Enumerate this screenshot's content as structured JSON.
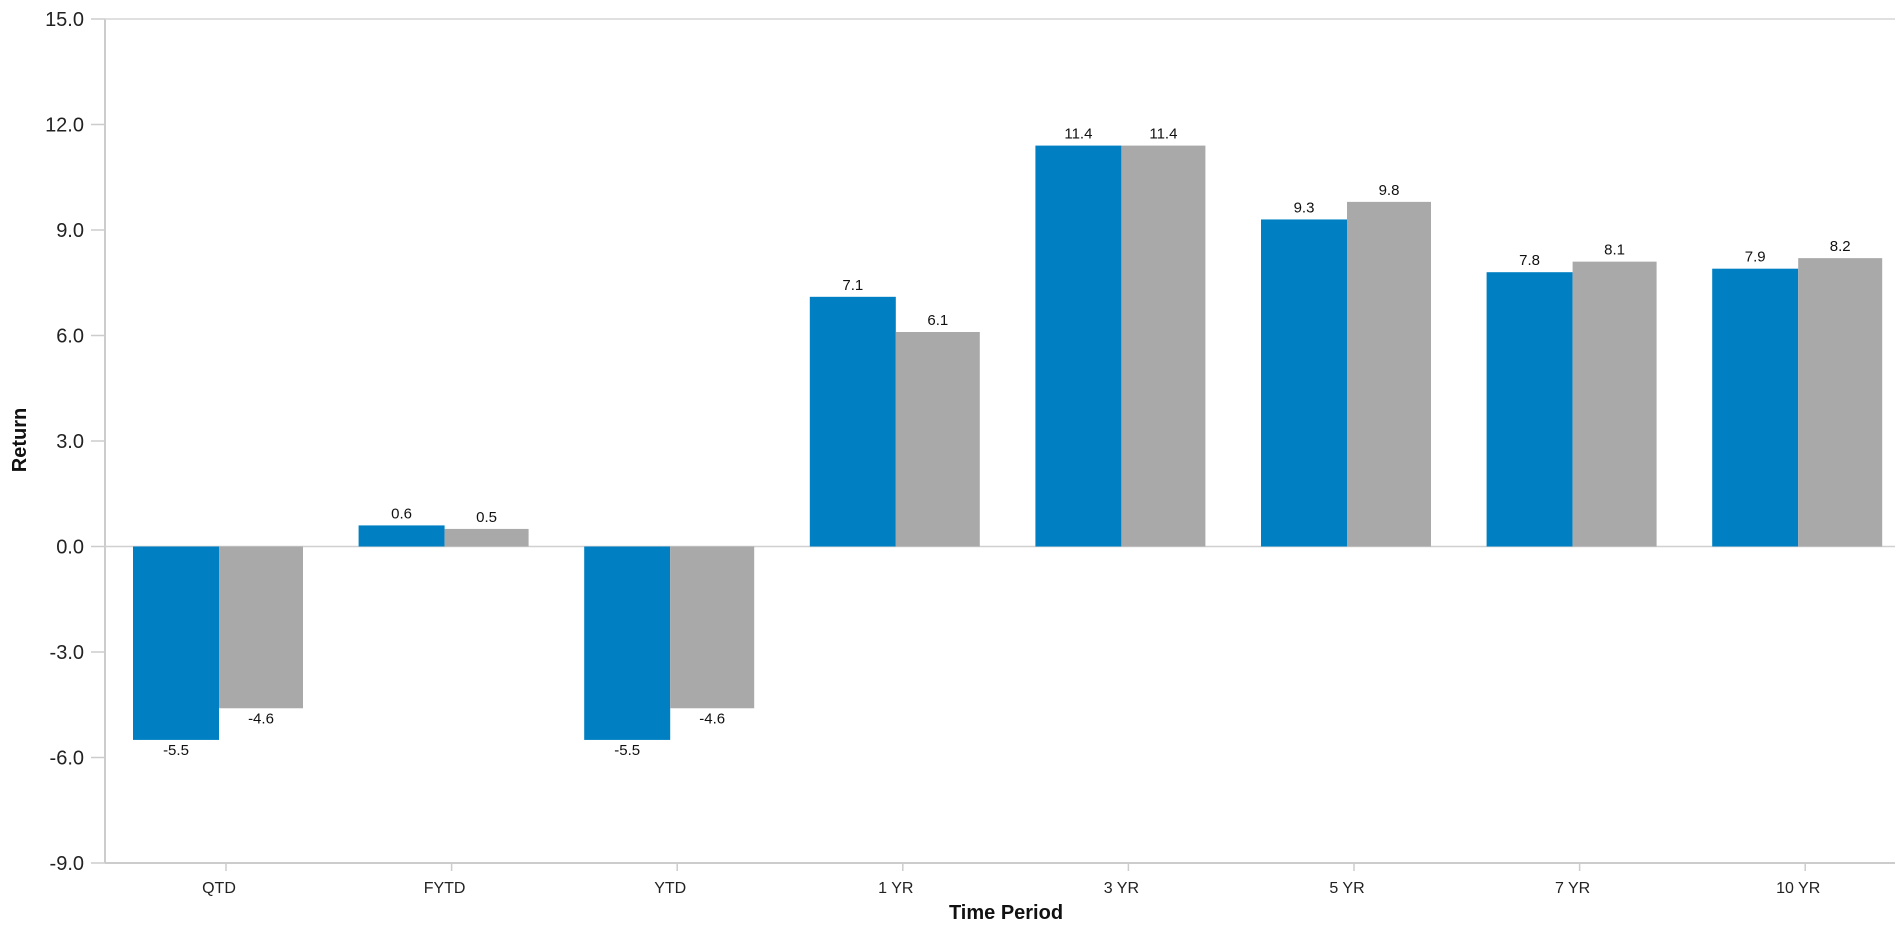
{
  "chart_data": {
    "type": "bar",
    "title": "",
    "xlabel": "Time Period",
    "ylabel": "Return",
    "categories": [
      "QTD",
      "FYTD",
      "YTD",
      "1 YR",
      "3 YR",
      "5 YR",
      "7 YR",
      "10 YR"
    ],
    "series": [
      {
        "color": "#0080C3",
        "values": [
          -5.5,
          0.6,
          -5.5,
          7.1,
          11.4,
          9.3,
          7.8,
          7.9
        ]
      },
      {
        "color": "#A9A9A9",
        "values": [
          -4.6,
          0.5,
          -4.6,
          6.1,
          11.4,
          9.8,
          8.1,
          8.2
        ]
      }
    ],
    "ylim": [
      -9.0,
      15.0
    ],
    "yticks": [
      "15.0",
      "12.0",
      "9.0",
      "6.0",
      "3.0",
      "0.0",
      "-3.0",
      "-6.0",
      "-9.0"
    ],
    "grid": false,
    "legend": "none"
  }
}
